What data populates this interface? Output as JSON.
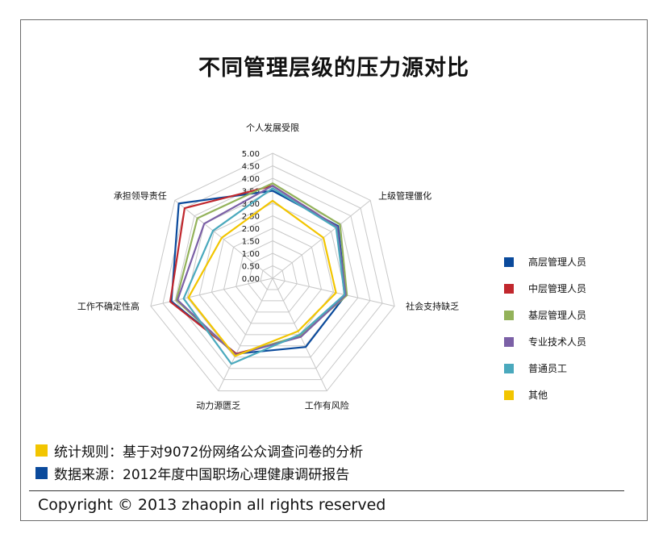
{
  "chart_data": {
    "type": "radar",
    "title": "不同管理层级的压力源对比",
    "axes": [
      "个人发展受限",
      "上级管理僵化",
      "社会支持缺乏",
      "工作有风险",
      "动力源匮乏",
      "工作不确定性高",
      "承担领导责任"
    ],
    "ticks": [
      "0.00",
      "0.50",
      "1.00",
      "1.50",
      "2.00",
      "2.50",
      "3.00",
      "3.50",
      "4.00",
      "4.50",
      "5.00"
    ],
    "range": [
      0,
      5
    ],
    "legend_position": "right",
    "series": [
      {
        "name": "高层管理人员",
        "color": "#0a4a9c",
        "values": [
          3.5,
          3.35,
          3.0,
          3.05,
          3.35,
          4.15,
          4.8
        ]
      },
      {
        "name": "中层管理人员",
        "color": "#c1272d",
        "values": [
          3.7,
          3.3,
          2.95,
          2.6,
          3.35,
          4.2,
          4.5
        ]
      },
      {
        "name": "基层管理人员",
        "color": "#93b25a",
        "values": [
          3.8,
          3.45,
          3.05,
          2.55,
          3.4,
          3.95,
          3.85
        ]
      },
      {
        "name": "专业技术人员",
        "color": "#7b60a6",
        "values": [
          3.7,
          3.3,
          3.0,
          2.6,
          3.4,
          3.9,
          3.5
        ]
      },
      {
        "name": "普通员工",
        "color": "#4aa9bd",
        "values": [
          3.6,
          3.25,
          2.95,
          2.5,
          3.8,
          3.65,
          3.05
        ]
      },
      {
        "name": "其他",
        "color": "#f2c500",
        "values": [
          3.1,
          2.6,
          2.6,
          2.35,
          3.45,
          3.45,
          2.6
        ]
      }
    ]
  },
  "notes": [
    {
      "text": "统计规则：基于对9072份网络公众调查问卷的分析",
      "color": "#f2c500"
    },
    {
      "text": "数据来源：2012年度中国职场心理健康调研报告",
      "color": "#0a4a9c"
    }
  ],
  "copyright": "Copyright © 2013 zhaopin all rights reserved"
}
